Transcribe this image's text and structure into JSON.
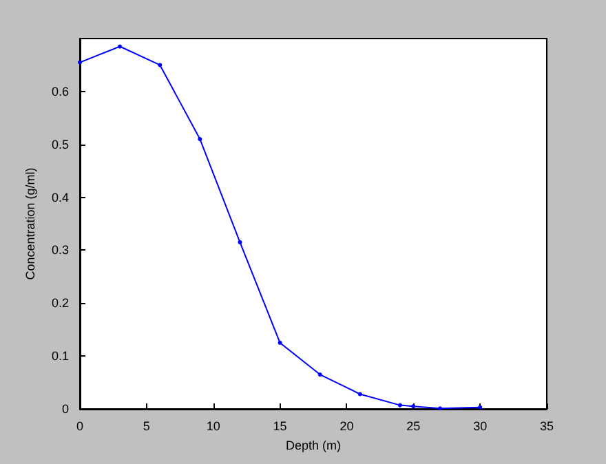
{
  "chart_data": {
    "type": "line",
    "xlabel": "Depth (m)",
    "ylabel": "Concentration (g/ml)",
    "x": [
      0,
      3,
      6,
      9,
      12,
      15,
      18,
      21,
      24,
      25,
      27,
      30
    ],
    "series": [
      {
        "color": "#0000ff",
        "values": [
          0.655,
          0.685,
          0.65,
          0.51,
          0.315,
          0.125,
          0.065,
          0.028,
          0.007,
          0.005,
          0.001,
          0.003
        ]
      }
    ],
    "xlim": [
      0,
      35
    ],
    "xticks": [
      0,
      5,
      10,
      15,
      20,
      25,
      30,
      35
    ],
    "ylim": [
      0,
      0.7
    ],
    "yticks": [
      0,
      0.1,
      0.2,
      0.3,
      0.4,
      0.5,
      0.6
    ],
    "grid": false,
    "marker": "circle",
    "line_style": "solid"
  }
}
